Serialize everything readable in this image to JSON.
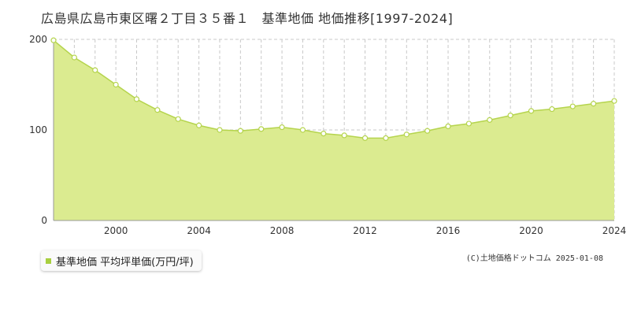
{
  "title": "広島県広島市東区曙２丁目３５番１　基準地価 地価推移[1997-2024]",
  "credit": "(C)土地価格ドットコム 2025-01-08",
  "chart_data": {
    "type": "area",
    "x": [
      1997,
      1998,
      1999,
      2000,
      2001,
      2002,
      2003,
      2004,
      2005,
      2006,
      2007,
      2008,
      2009,
      2010,
      2011,
      2012,
      2013,
      2014,
      2015,
      2016,
      2017,
      2018,
      2019,
      2020,
      2021,
      2022,
      2023,
      2024
    ],
    "series": [
      {
        "name": "基準地価 平均坪単価(万円/坪)",
        "values": [
          199,
          180,
          166,
          150,
          134,
          122,
          112,
          105,
          100,
          99,
          101,
          103,
          100,
          96,
          94,
          91,
          91,
          95,
          99,
          104,
          107,
          111,
          116,
          121,
          123,
          126,
          129,
          132
        ]
      }
    ],
    "xlim": [
      1997,
      2024
    ],
    "ylim": [
      0,
      200
    ],
    "x_ticks": [
      "2000",
      "2004",
      "2008",
      "2012",
      "2016",
      "2020",
      "2024"
    ],
    "y_ticks": [
      "0",
      "100",
      "200"
    ],
    "grid": true,
    "legend_position": "bottom-left",
    "colors": {
      "fill": "#dbeb90",
      "line": "#b5d44d",
      "marker_fill": "#ffffff",
      "marker_stroke": "#b5d44d",
      "legend_swatch": "#a8cf3f"
    }
  }
}
